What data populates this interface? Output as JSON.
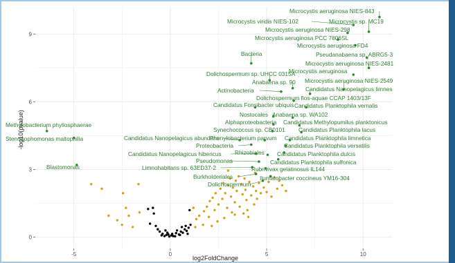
{
  "colors": {
    "significant": "#2e8b2e",
    "moderate": "#d4a017",
    "nonsignificant": "#000000",
    "label": "#2e7d32",
    "panel_bg": "#ffffff",
    "grid": "#ebebeb",
    "frame": "#9ec8e6",
    "side_bar": "#1e5d8c"
  },
  "chart_data": {
    "type": "scatter",
    "title": "",
    "xlabel": "log2FoldChange",
    "ylabel": "-log10(pvalue)",
    "xlim": [
      -7,
      11.5
    ],
    "ylim": [
      -0.5,
      10.2
    ],
    "x_ticks": [
      -5,
      0,
      5,
      10
    ],
    "y_ticks": [
      0,
      3,
      6,
      9
    ],
    "x_tick_labels": [
      "-5",
      "0",
      "5",
      "10"
    ],
    "y_tick_labels": [
      "0",
      "3",
      "6",
      "9"
    ],
    "grid": true,
    "legend": "none",
    "labeled_points": [
      {
        "name": "Microcystis aeruginosa NIES-843",
        "x": 10.85,
        "y": 9.75
      },
      {
        "name": "Microcystis viridis NIES-102",
        "x": 9.5,
        "y": 9.4
      },
      {
        "name": "Microcystis sp. MC19",
        "x": 10.3,
        "y": 9.1
      },
      {
        "name": "Microcystis aeruginosa NIES-298",
        "x": 9.2,
        "y": 9.05
      },
      {
        "name": "Microcystis aeruginosa PCC 7806SL",
        "x": 8.7,
        "y": 8.75
      },
      {
        "name": "Microcystis aeruginosa FD4",
        "x": 9.6,
        "y": 8.5
      },
      {
        "name": "Pseudanabaena sp. ABRG5-3",
        "x": 10.2,
        "y": 7.95
      },
      {
        "name": "Bacteria",
        "x": 4.2,
        "y": 7.7
      },
      {
        "name": "Microcystis aeruginosa NIES-2481",
        "x": 10.3,
        "y": 7.5
      },
      {
        "name": "Microcystis aeruginosa",
        "x": 9.5,
        "y": 7.2
      },
      {
        "name": "Dolichospermum sp. UHCC 0315A",
        "x": 5.15,
        "y": 6.95
      },
      {
        "name": "Anabaena sp. 90",
        "x": 6.35,
        "y": 6.6
      },
      {
        "name": "Microcystis aeruginosa NIES-2549",
        "x": 9.0,
        "y": 6.55
      },
      {
        "name": "Actinobacteria",
        "x": 5.75,
        "y": 6.45
      },
      {
        "name": "Candidatus Nanopelagicus limnes",
        "x": 7.25,
        "y": 6.35
      },
      {
        "name": "Dolichospermum flos-aquae CCAP 1403/13F",
        "x": 6.4,
        "y": 6.05
      },
      {
        "name": "Candidatus Fonsibacter ubiquis",
        "x": 4.4,
        "y": 5.75
      },
      {
        "name": "Candidatus Planktophila vernalis",
        "x": 7.05,
        "y": 5.75
      },
      {
        "name": "Nostocales",
        "x": 5.35,
        "y": 5.35
      },
      {
        "name": "Anabaena sp. WA102",
        "x": 6.35,
        "y": 5.3
      },
      {
        "name": "Alphaproteobacteria",
        "x": 5.35,
        "y": 5.0
      },
      {
        "name": "Candidatus Methylopumilus planktonicus",
        "x": 6.7,
        "y": 4.95
      },
      {
        "name": "Synechococcus sp. CB0101",
        "x": 5.3,
        "y": 4.7
      },
      {
        "name": "Candidatus Planktophila lacus",
        "x": 6.8,
        "y": 4.65
      },
      {
        "name": "Methylobacterium phyllosphaerae",
        "x": -6.4,
        "y": 4.7
      },
      {
        "name": "Stenotrophomonas maltophilia",
        "x": -5.0,
        "y": 4.4
      },
      {
        "name": "Candidatus Nanopelagicus abundans",
        "x": 3.6,
        "y": 4.3
      },
      {
        "name": "Phenylobacterium parvum",
        "x": 4.9,
        "y": 4.3
      },
      {
        "name": "Candidatus Planktophila limnetica",
        "x": 6.2,
        "y": 4.3
      },
      {
        "name": "Proteobacteria",
        "x": 4.2,
        "y": 4.1
      },
      {
        "name": "Candidatus Planktophila versatilis",
        "x": 6.0,
        "y": 4.05
      },
      {
        "name": "Candidatus Nanopelagicus hibericus",
        "x": 4.45,
        "y": 3.7
      },
      {
        "name": "Rhizobiales",
        "x": 5.05,
        "y": 3.65
      },
      {
        "name": "Candidatus Planktophila dulcis",
        "x": 5.9,
        "y": 3.75
      },
      {
        "name": "Candidatus Planktophila sulfonica",
        "x": 5.6,
        "y": 3.45
      },
      {
        "name": "Pseudomonas",
        "x": 4.6,
        "y": 3.35
      },
      {
        "name": "Blastomonas",
        "x": -4.85,
        "y": 3.2
      },
      {
        "name": "Limnohabitans sp. 63ED37-2",
        "x": 4.25,
        "y": 3.1
      },
      {
        "name": "Rubrivivax gelatinosus IL144",
        "x": 4.95,
        "y": 3.05
      },
      {
        "name": "Burkholderiales",
        "x": 4.45,
        "y": 2.8
      },
      {
        "name": "Ilumatobacter coccineus YM16-304",
        "x": 5.2,
        "y": 2.7
      },
      {
        "name": "Dolichospermum",
        "x": 4.8,
        "y": 2.5
      }
    ],
    "moderate_points": [
      [
        -4.1,
        2.35
      ],
      [
        -3.55,
        2.15
      ],
      [
        -1.65,
        2.35
      ],
      [
        -2.45,
        1.95
      ],
      [
        -2.3,
        1.3
      ],
      [
        -2.15,
        0.95
      ],
      [
        -2.75,
        0.75
      ],
      [
        -3.2,
        0.95
      ],
      [
        -1.95,
        0.45
      ],
      [
        -1.6,
        1.1
      ],
      [
        -2.5,
        0.55
      ],
      [
        1.2,
        1.3
      ],
      [
        1.35,
        0.8
      ],
      [
        1.3,
        0.45
      ],
      [
        1.5,
        0.95
      ],
      [
        1.75,
        1.15
      ],
      [
        1.9,
        1.35
      ],
      [
        2.0,
        0.9
      ],
      [
        2.05,
        1.6
      ],
      [
        2.2,
        1.75
      ],
      [
        2.3,
        1.2
      ],
      [
        2.35,
        1.95
      ],
      [
        2.5,
        1.45
      ],
      [
        2.6,
        2.15
      ],
      [
        2.7,
        1.7
      ],
      [
        2.75,
        2.4
      ],
      [
        2.85,
        1.95
      ],
      [
        2.95,
        1.3
      ],
      [
        3.0,
        2.3
      ],
      [
        3.1,
        2.6
      ],
      [
        3.15,
        1.8
      ],
      [
        3.25,
        2.2
      ],
      [
        3.35,
        1.55
      ],
      [
        3.4,
        2.5
      ],
      [
        3.45,
        2.05
      ],
      [
        3.55,
        2.7
      ],
      [
        3.6,
        1.35
      ],
      [
        3.7,
        2.35
      ],
      [
        3.75,
        1.9
      ],
      [
        3.85,
        2.6
      ],
      [
        3.9,
        2.1
      ],
      [
        3.95,
        1.65
      ],
      [
        4.0,
        1.2
      ],
      [
        4.1,
        2.45
      ],
      [
        4.2,
        1.85
      ],
      [
        4.3,
        2.25
      ],
      [
        4.35,
        1.45
      ],
      [
        4.45,
        2.05
      ],
      [
        4.5,
        1.7
      ],
      [
        4.6,
        2.4
      ],
      [
        4.7,
        1.95
      ],
      [
        4.85,
        2.2
      ],
      [
        5.0,
        2.0
      ],
      [
        5.1,
        2.45
      ],
      [
        5.25,
        1.8
      ],
      [
        5.4,
        2.65
      ],
      [
        5.55,
        2.15
      ],
      [
        5.65,
        2.5
      ],
      [
        5.8,
        2.3
      ],
      [
        6.0,
        2.05
      ],
      [
        3.2,
        1.1
      ],
      [
        2.45,
        0.7
      ],
      [
        1.7,
        0.55
      ],
      [
        3.8,
        1.05
      ],
      [
        4.05,
        0.9
      ],
      [
        2.8,
        0.85
      ],
      [
        4.4,
        2.85
      ],
      [
        3.0,
        2.95
      ],
      [
        3.35,
        1.0
      ],
      [
        2.15,
        0.5
      ]
    ],
    "nonsignificant_points": [
      [
        -0.9,
        1.3
      ],
      [
        -0.85,
        1.05
      ],
      [
        -1.15,
        1.25
      ],
      [
        -1.05,
        0.6
      ],
      [
        -0.75,
        0.5
      ],
      [
        -0.55,
        0.25
      ],
      [
        -0.4,
        0.15
      ],
      [
        -0.3,
        0.05
      ],
      [
        -0.2,
        0.1
      ],
      [
        -0.1,
        0.12
      ],
      [
        -0.05,
        0.03
      ],
      [
        0.05,
        0.08
      ],
      [
        0.15,
        0.05
      ],
      [
        0.25,
        0.04
      ],
      [
        0.3,
        0.18
      ],
      [
        0.45,
        0.12
      ],
      [
        0.55,
        0.25
      ],
      [
        0.65,
        0.2
      ],
      [
        0.75,
        0.35
      ],
      [
        0.85,
        0.28
      ],
      [
        0.95,
        0.42
      ],
      [
        1.0,
        1.2
      ],
      [
        0.6,
        0.45
      ],
      [
        0.35,
        0.3
      ],
      [
        -0.25,
        0.3
      ],
      [
        -0.65,
        0.35
      ],
      [
        0.1,
        0.15
      ],
      [
        0.8,
        0.5
      ],
      [
        -0.45,
        0.08
      ],
      [
        0.5,
        0.1
      ],
      [
        1.05,
        0.55
      ],
      [
        0.9,
        0.15
      ],
      [
        -0.15,
        0.2
      ]
    ]
  }
}
